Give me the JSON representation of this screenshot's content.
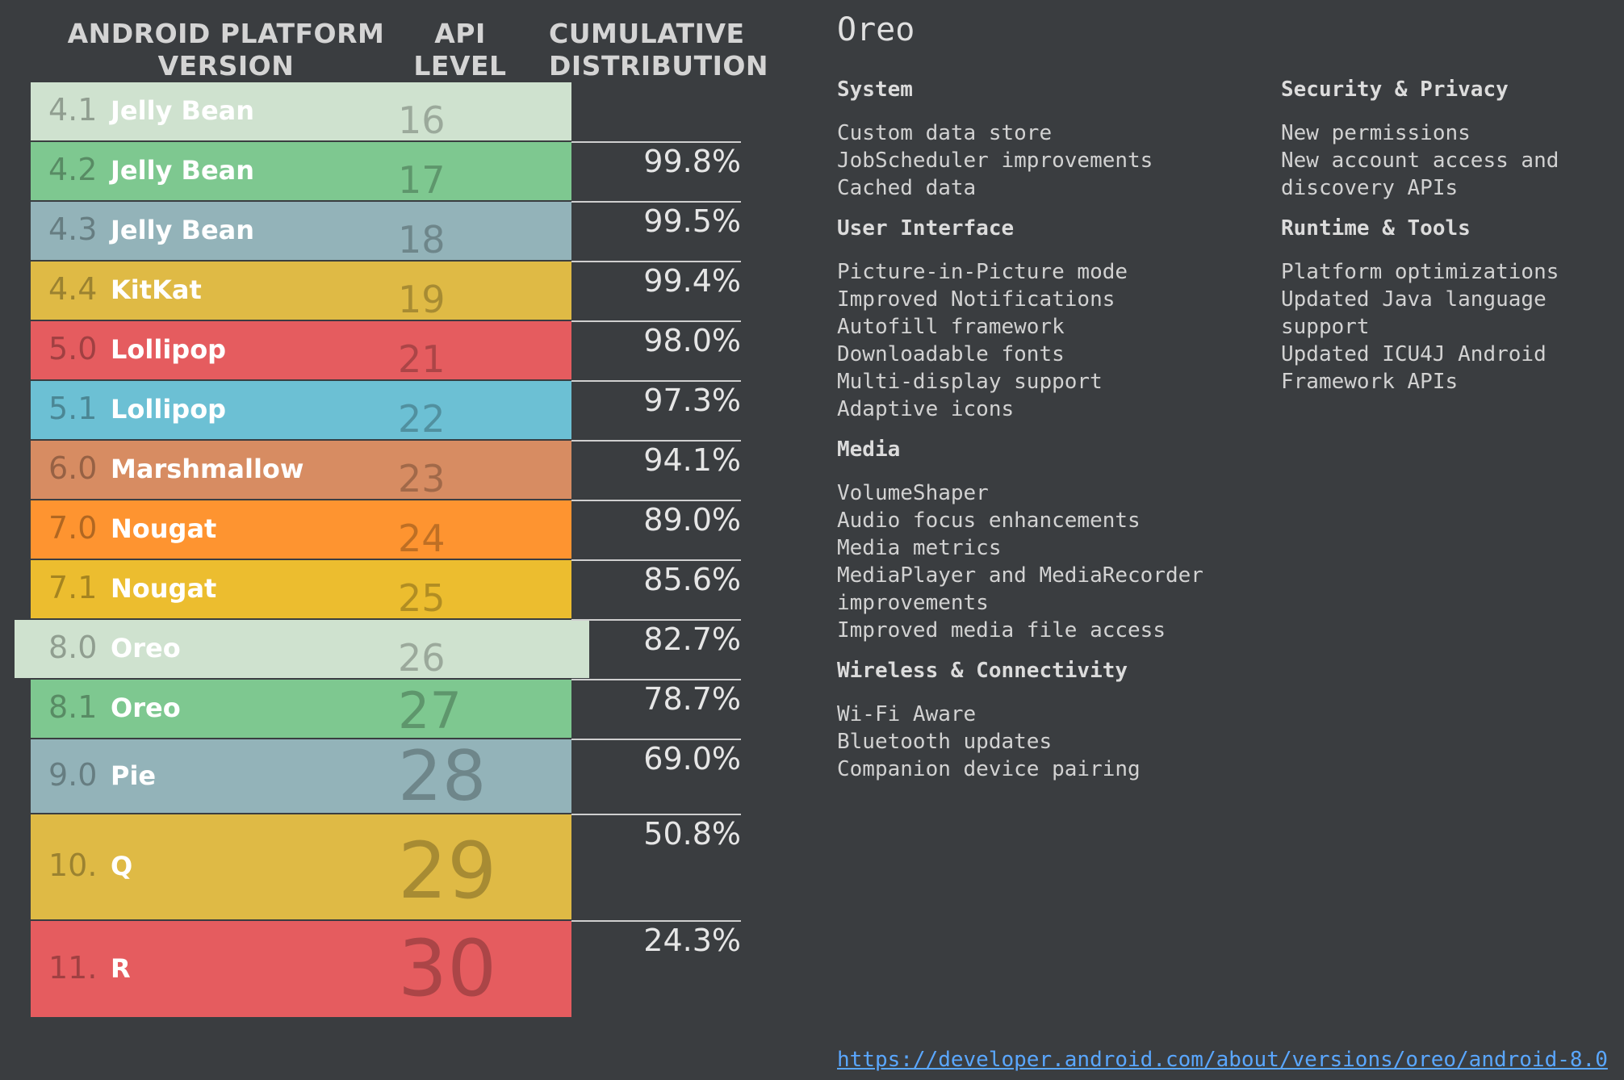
{
  "headers": {
    "version": "ANDROID PLATFORM VERSION",
    "api": "API LEVEL",
    "cumulative": "CUMULATIVE DISTRIBUTION"
  },
  "versions": [
    {
      "num": "4.1",
      "name": "Jelly Bean",
      "api": "16",
      "cumulative": "",
      "color": "#cfe2cf"
    },
    {
      "num": "4.2",
      "name": "Jelly Bean",
      "api": "17",
      "cumulative": "99.8%",
      "color": "#7ec890"
    },
    {
      "num": "4.3",
      "name": "Jelly Bean",
      "api": "18",
      "cumulative": "99.5%",
      "color": "#93b3b9"
    },
    {
      "num": "4.4",
      "name": "KitKat",
      "api": "19",
      "cumulative": "99.4%",
      "color": "#dfba45"
    },
    {
      "num": "5.0",
      "name": "Lollipop",
      "api": "21",
      "cumulative": "98.0%",
      "color": "#e55c5f"
    },
    {
      "num": "5.1",
      "name": "Lollipop",
      "api": "22",
      "cumulative": "97.3%",
      "color": "#6cc0d4"
    },
    {
      "num": "6.0",
      "name": "Marshmallow",
      "api": "23",
      "cumulative": "94.1%",
      "color": "#d78c62"
    },
    {
      "num": "7.0",
      "name": "Nougat",
      "api": "24",
      "cumulative": "89.0%",
      "color": "#fe9430"
    },
    {
      "num": "7.1",
      "name": "Nougat",
      "api": "25",
      "cumulative": "85.6%",
      "color": "#ecbd2f"
    },
    {
      "num": "8.0",
      "name": "Oreo",
      "api": "26",
      "cumulative": "82.7%",
      "color": "#cfe2cf"
    },
    {
      "num": "8.1",
      "name": "Oreo",
      "api": "27",
      "cumulative": "78.7%",
      "color": "#7ec890"
    },
    {
      "num": "9.0",
      "name": "Pie",
      "api": "28",
      "cumulative": "69.0%",
      "color": "#93b3b9"
    },
    {
      "num": "10.",
      "name": "Q",
      "api": "29",
      "cumulative": "50.8%",
      "color": "#dfba45"
    },
    {
      "num": "11.",
      "name": "R",
      "api": "30",
      "cumulative": "24.3%",
      "color": "#e55c5f"
    }
  ],
  "detail": {
    "title": "Oreo",
    "left_sections": [
      {
        "title": "System",
        "items": [
          "Custom data store",
          "JobScheduler improvements",
          "Cached data"
        ]
      },
      {
        "title": "User Interface",
        "items": [
          "Picture-in-Picture mode",
          "Improved Notifications",
          "Autofill framework",
          "Downloadable fonts",
          "Multi-display support",
          "Adaptive icons"
        ]
      },
      {
        "title": "Media",
        "items": [
          "VolumeShaper",
          "Audio focus enhancements",
          "Media metrics",
          "MediaPlayer and MediaRecorder",
          "improvements",
          "Improved media file access"
        ]
      },
      {
        "title": "Wireless & Connectivity",
        "items": [
          "Wi-Fi Aware",
          "Bluetooth updates",
          "Companion device pairing"
        ]
      }
    ],
    "right_sections": [
      {
        "title": "Security & Privacy",
        "items": [
          "New permissions",
          "New account access and",
          "discovery APIs"
        ]
      },
      {
        "title": "Runtime & Tools",
        "items": [
          "Platform optimizations",
          "Updated Java language",
          "support",
          "Updated ICU4J Android",
          "Framework APIs"
        ]
      }
    ],
    "link": "https://developer.android.com/about/versions/oreo/android-8.0"
  }
}
